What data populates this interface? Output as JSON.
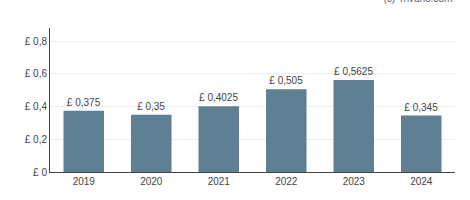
{
  "chart_data": {
    "type": "bar",
    "categories": [
      "2019",
      "2020",
      "2021",
      "2022",
      "2023",
      "2024"
    ],
    "values": [
      0.375,
      0.35,
      0.4025,
      0.505,
      0.5625,
      0.345
    ],
    "value_labels": [
      "£ 0,375",
      "£ 0,35",
      "£ 0,4025",
      "£ 0,505",
      "£ 0,5625",
      "£ 0,345"
    ],
    "data_labels": true,
    "color": "#5f7f93",
    "ylim": [
      0,
      0.88
    ],
    "yticks": [
      {
        "value": 0.0,
        "label": "£ 0"
      },
      {
        "value": 0.2,
        "label": "£ 0,2"
      },
      {
        "value": 0.4,
        "label": "£ 0,4"
      },
      {
        "value": 0.6,
        "label": "£ 0,6"
      },
      {
        "value": 0.8,
        "label": "£ 0,8"
      }
    ],
    "grid": true,
    "annotations": [
      "(c) Trivano.com"
    ]
  }
}
